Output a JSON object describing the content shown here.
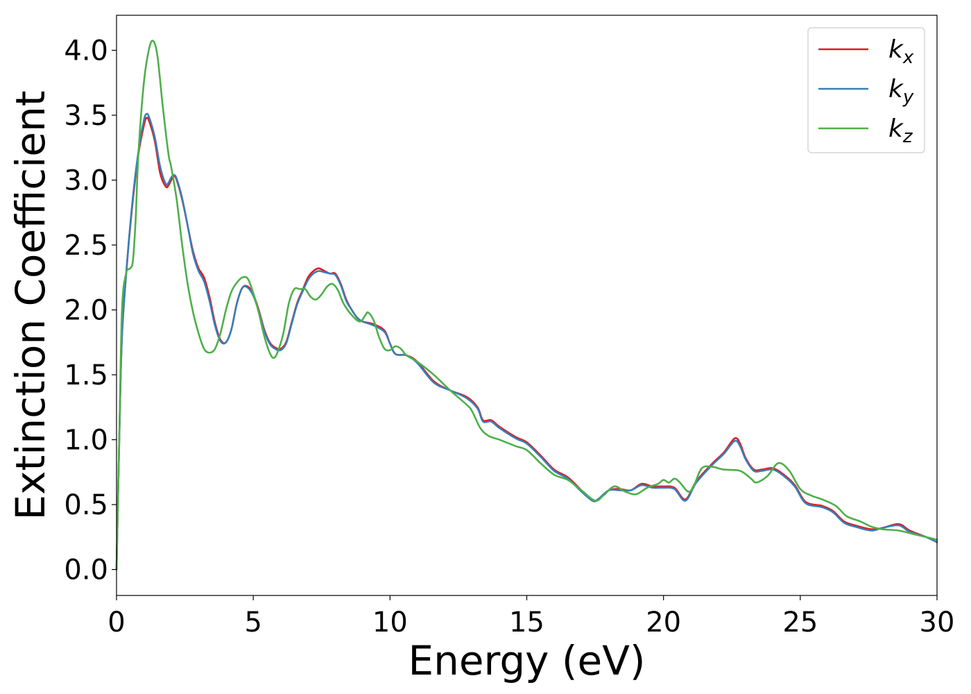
{
  "chart_data": {
    "type": "line",
    "title": "",
    "xlabel": "Energy (eV)",
    "ylabel": "Extinction Coefficient",
    "xlim": [
      0,
      30
    ],
    "ylim": [
      -0.2,
      4.27
    ],
    "xticks": [
      0,
      5,
      10,
      15,
      20,
      25,
      30
    ],
    "xtick_labels": [
      "0",
      "5",
      "10",
      "15",
      "20",
      "25",
      "30"
    ],
    "yticks": [
      0.0,
      0.5,
      1.0,
      1.5,
      2.0,
      2.5,
      3.0,
      3.5,
      4.0
    ],
    "ytick_labels": [
      "0.0",
      "0.5",
      "1.0",
      "1.5",
      "2.0",
      "2.5",
      "3.0",
      "3.5",
      "4.0"
    ],
    "grid": false,
    "legend_position": "top-right",
    "series": [
      {
        "name": "k",
        "subscript": "x",
        "color": "#e41a1c",
        "points": [
          [
            0,
            0.0
          ],
          [
            0.1,
            1.0
          ],
          [
            0.2,
            1.8
          ],
          [
            0.4,
            2.4
          ],
          [
            0.6,
            2.85
          ],
          [
            0.8,
            3.2
          ],
          [
            1.0,
            3.42
          ],
          [
            1.1,
            3.48
          ],
          [
            1.2,
            3.45
          ],
          [
            1.4,
            3.3
          ],
          [
            1.6,
            3.05
          ],
          [
            1.8,
            2.95
          ],
          [
            1.9,
            2.96
          ],
          [
            2.0,
            3.0
          ],
          [
            2.1,
            3.03
          ],
          [
            2.2,
            3.0
          ],
          [
            2.4,
            2.85
          ],
          [
            2.6,
            2.65
          ],
          [
            2.8,
            2.45
          ],
          [
            3.0,
            2.32
          ],
          [
            3.2,
            2.25
          ],
          [
            3.4,
            2.1
          ],
          [
            3.6,
            1.9
          ],
          [
            3.8,
            1.77
          ],
          [
            4.0,
            1.75
          ],
          [
            4.2,
            1.85
          ],
          [
            4.4,
            2.05
          ],
          [
            4.6,
            2.17
          ],
          [
            4.8,
            2.18
          ],
          [
            5.0,
            2.12
          ],
          [
            5.2,
            2.0
          ],
          [
            5.4,
            1.85
          ],
          [
            5.6,
            1.75
          ],
          [
            5.8,
            1.71
          ],
          [
            6.0,
            1.7
          ],
          [
            6.2,
            1.75
          ],
          [
            6.4,
            1.9
          ],
          [
            6.6,
            2.05
          ],
          [
            6.8,
            2.15
          ],
          [
            7.0,
            2.25
          ],
          [
            7.2,
            2.3
          ],
          [
            7.4,
            2.32
          ],
          [
            7.6,
            2.3
          ],
          [
            7.8,
            2.28
          ],
          [
            8.0,
            2.28
          ],
          [
            8.2,
            2.2
          ],
          [
            8.4,
            2.08
          ],
          [
            8.6,
            2.0
          ],
          [
            8.8,
            1.94
          ],
          [
            9.0,
            1.91
          ],
          [
            9.4,
            1.89
          ],
          [
            9.8,
            1.84
          ],
          [
            10.0,
            1.74
          ],
          [
            10.2,
            1.66
          ],
          [
            10.6,
            1.65
          ],
          [
            11.0,
            1.6
          ],
          [
            11.6,
            1.45
          ],
          [
            12.2,
            1.38
          ],
          [
            12.8,
            1.33
          ],
          [
            13.2,
            1.25
          ],
          [
            13.4,
            1.15
          ],
          [
            13.7,
            1.15
          ],
          [
            14.0,
            1.1
          ],
          [
            14.6,
            1.02
          ],
          [
            15.0,
            0.98
          ],
          [
            15.5,
            0.88
          ],
          [
            16.0,
            0.77
          ],
          [
            16.5,
            0.71
          ],
          [
            17.0,
            0.61
          ],
          [
            17.4,
            0.53
          ],
          [
            17.6,
            0.54
          ],
          [
            18.0,
            0.61
          ],
          [
            18.4,
            0.62
          ],
          [
            18.8,
            0.61
          ],
          [
            19.2,
            0.66
          ],
          [
            19.6,
            0.64
          ],
          [
            20.0,
            0.64
          ],
          [
            20.4,
            0.63
          ],
          [
            20.8,
            0.54
          ],
          [
            21.2,
            0.68
          ],
          [
            21.8,
            0.82
          ],
          [
            22.2,
            0.9
          ],
          [
            22.6,
            1.01
          ],
          [
            22.8,
            0.97
          ],
          [
            23.0,
            0.86
          ],
          [
            23.3,
            0.77
          ],
          [
            23.6,
            0.77
          ],
          [
            24.0,
            0.78
          ],
          [
            24.4,
            0.73
          ],
          [
            24.8,
            0.65
          ],
          [
            25.2,
            0.52
          ],
          [
            25.8,
            0.49
          ],
          [
            26.2,
            0.45
          ],
          [
            26.6,
            0.37
          ],
          [
            27.0,
            0.34
          ],
          [
            27.6,
            0.31
          ],
          [
            28.0,
            0.32
          ],
          [
            28.6,
            0.35
          ],
          [
            29.0,
            0.3
          ],
          [
            29.6,
            0.25
          ],
          [
            30.0,
            0.21
          ]
        ]
      },
      {
        "name": "k",
        "subscript": "y",
        "color": "#377eb8",
        "points": [
          [
            0,
            0.0
          ],
          [
            0.1,
            1.0
          ],
          [
            0.2,
            1.8
          ],
          [
            0.4,
            2.4
          ],
          [
            0.6,
            2.87
          ],
          [
            0.8,
            3.22
          ],
          [
            1.0,
            3.46
          ],
          [
            1.1,
            3.51
          ],
          [
            1.2,
            3.48
          ],
          [
            1.4,
            3.33
          ],
          [
            1.6,
            3.1
          ],
          [
            1.8,
            2.97
          ],
          [
            1.9,
            2.98
          ],
          [
            2.0,
            3.02
          ],
          [
            2.1,
            3.04
          ],
          [
            2.2,
            3.01
          ],
          [
            2.4,
            2.86
          ],
          [
            2.6,
            2.65
          ],
          [
            2.8,
            2.43
          ],
          [
            3.0,
            2.3
          ],
          [
            3.2,
            2.22
          ],
          [
            3.4,
            2.07
          ],
          [
            3.6,
            1.88
          ],
          [
            3.8,
            1.76
          ],
          [
            4.0,
            1.75
          ],
          [
            4.2,
            1.85
          ],
          [
            4.4,
            2.05
          ],
          [
            4.6,
            2.17
          ],
          [
            4.8,
            2.17
          ],
          [
            5.0,
            2.11
          ],
          [
            5.2,
            1.99
          ],
          [
            5.4,
            1.84
          ],
          [
            5.6,
            1.74
          ],
          [
            5.8,
            1.7
          ],
          [
            6.0,
            1.69
          ],
          [
            6.2,
            1.74
          ],
          [
            6.4,
            1.89
          ],
          [
            6.6,
            2.04
          ],
          [
            6.8,
            2.14
          ],
          [
            7.0,
            2.23
          ],
          [
            7.2,
            2.28
          ],
          [
            7.4,
            2.3
          ],
          [
            7.6,
            2.29
          ],
          [
            7.8,
            2.28
          ],
          [
            8.0,
            2.27
          ],
          [
            8.2,
            2.19
          ],
          [
            8.4,
            2.07
          ],
          [
            8.6,
            2.0
          ],
          [
            8.8,
            1.94
          ],
          [
            9.0,
            1.91
          ],
          [
            9.4,
            1.88
          ],
          [
            9.8,
            1.83
          ],
          [
            10.0,
            1.74
          ],
          [
            10.2,
            1.66
          ],
          [
            10.6,
            1.65
          ],
          [
            11.0,
            1.59
          ],
          [
            11.6,
            1.44
          ],
          [
            12.2,
            1.38
          ],
          [
            12.8,
            1.32
          ],
          [
            13.2,
            1.24
          ],
          [
            13.4,
            1.14
          ],
          [
            13.7,
            1.14
          ],
          [
            14.0,
            1.09
          ],
          [
            14.6,
            1.01
          ],
          [
            15.0,
            0.97
          ],
          [
            15.5,
            0.87
          ],
          [
            16.0,
            0.76
          ],
          [
            16.5,
            0.7
          ],
          [
            17.0,
            0.6
          ],
          [
            17.4,
            0.53
          ],
          [
            17.6,
            0.54
          ],
          [
            18.0,
            0.61
          ],
          [
            18.4,
            0.61
          ],
          [
            18.8,
            0.61
          ],
          [
            19.2,
            0.65
          ],
          [
            19.6,
            0.63
          ],
          [
            20.0,
            0.63
          ],
          [
            20.4,
            0.62
          ],
          [
            20.8,
            0.53
          ],
          [
            21.2,
            0.67
          ],
          [
            21.8,
            0.81
          ],
          [
            22.2,
            0.89
          ],
          [
            22.6,
            0.99
          ],
          [
            22.8,
            0.95
          ],
          [
            23.0,
            0.85
          ],
          [
            23.3,
            0.76
          ],
          [
            23.6,
            0.76
          ],
          [
            24.0,
            0.77
          ],
          [
            24.4,
            0.72
          ],
          [
            24.8,
            0.64
          ],
          [
            25.2,
            0.51
          ],
          [
            25.8,
            0.48
          ],
          [
            26.2,
            0.44
          ],
          [
            26.6,
            0.36
          ],
          [
            27.0,
            0.33
          ],
          [
            27.6,
            0.3
          ],
          [
            28.0,
            0.32
          ],
          [
            28.6,
            0.34
          ],
          [
            29.0,
            0.29
          ],
          [
            29.6,
            0.25
          ],
          [
            30.0,
            0.21
          ]
        ]
      },
      {
        "name": "k",
        "subscript": "z",
        "color": "#4daf4a",
        "points": [
          [
            0,
            0.0
          ],
          [
            0.1,
            1.0
          ],
          [
            0.2,
            2.0
          ],
          [
            0.35,
            2.28
          ],
          [
            0.5,
            2.32
          ],
          [
            0.6,
            2.38
          ],
          [
            0.7,
            2.7
          ],
          [
            0.8,
            3.2
          ],
          [
            1.0,
            3.75
          ],
          [
            1.2,
            4.02
          ],
          [
            1.35,
            4.07
          ],
          [
            1.5,
            3.95
          ],
          [
            1.7,
            3.55
          ],
          [
            1.9,
            3.2
          ],
          [
            2.0,
            3.1
          ],
          [
            2.2,
            2.85
          ],
          [
            2.4,
            2.5
          ],
          [
            2.6,
            2.2
          ],
          [
            2.8,
            1.98
          ],
          [
            3.0,
            1.82
          ],
          [
            3.2,
            1.7
          ],
          [
            3.4,
            1.67
          ],
          [
            3.6,
            1.7
          ],
          [
            3.8,
            1.82
          ],
          [
            4.0,
            2.0
          ],
          [
            4.2,
            2.14
          ],
          [
            4.4,
            2.21
          ],
          [
            4.6,
            2.25
          ],
          [
            4.8,
            2.24
          ],
          [
            5.0,
            2.13
          ],
          [
            5.2,
            1.98
          ],
          [
            5.4,
            1.8
          ],
          [
            5.6,
            1.67
          ],
          [
            5.75,
            1.63
          ],
          [
            5.9,
            1.68
          ],
          [
            6.1,
            1.82
          ],
          [
            6.3,
            2.05
          ],
          [
            6.5,
            2.16
          ],
          [
            6.7,
            2.16
          ],
          [
            6.9,
            2.16
          ],
          [
            7.1,
            2.1
          ],
          [
            7.3,
            2.08
          ],
          [
            7.5,
            2.12
          ],
          [
            7.7,
            2.18
          ],
          [
            7.9,
            2.2
          ],
          [
            8.1,
            2.15
          ],
          [
            8.3,
            2.05
          ],
          [
            8.6,
            1.96
          ],
          [
            8.9,
            1.91
          ],
          [
            9.1,
            1.96
          ],
          [
            9.2,
            1.98
          ],
          [
            9.4,
            1.92
          ],
          [
            9.6,
            1.79
          ],
          [
            9.8,
            1.7
          ],
          [
            10.0,
            1.69
          ],
          [
            10.2,
            1.72
          ],
          [
            10.4,
            1.7
          ],
          [
            10.6,
            1.65
          ],
          [
            11.0,
            1.6
          ],
          [
            11.6,
            1.5
          ],
          [
            12.2,
            1.38
          ],
          [
            12.8,
            1.27
          ],
          [
            13.0,
            1.22
          ],
          [
            13.3,
            1.09
          ],
          [
            13.6,
            1.03
          ],
          [
            14.0,
            1.0
          ],
          [
            14.6,
            0.95
          ],
          [
            15.0,
            0.92
          ],
          [
            15.5,
            0.82
          ],
          [
            16.0,
            0.73
          ],
          [
            16.5,
            0.69
          ],
          [
            17.0,
            0.61
          ],
          [
            17.5,
            0.53
          ],
          [
            17.8,
            0.57
          ],
          [
            18.2,
            0.64
          ],
          [
            18.6,
            0.6
          ],
          [
            19.0,
            0.58
          ],
          [
            19.4,
            0.63
          ],
          [
            19.8,
            0.66
          ],
          [
            20.0,
            0.69
          ],
          [
            20.2,
            0.67
          ],
          [
            20.4,
            0.7
          ],
          [
            20.6,
            0.67
          ],
          [
            20.9,
            0.6
          ],
          [
            21.1,
            0.64
          ],
          [
            21.4,
            0.78
          ],
          [
            21.8,
            0.79
          ],
          [
            22.2,
            0.77
          ],
          [
            22.8,
            0.76
          ],
          [
            23.2,
            0.7
          ],
          [
            23.4,
            0.67
          ],
          [
            23.8,
            0.72
          ],
          [
            24.2,
            0.82
          ],
          [
            24.6,
            0.76
          ],
          [
            25.0,
            0.62
          ],
          [
            25.4,
            0.57
          ],
          [
            25.8,
            0.54
          ],
          [
            26.3,
            0.49
          ],
          [
            26.7,
            0.41
          ],
          [
            27.2,
            0.37
          ],
          [
            27.6,
            0.33
          ],
          [
            28.0,
            0.31
          ],
          [
            28.6,
            0.3
          ],
          [
            29.2,
            0.27
          ],
          [
            30.0,
            0.23
          ]
        ]
      }
    ]
  }
}
